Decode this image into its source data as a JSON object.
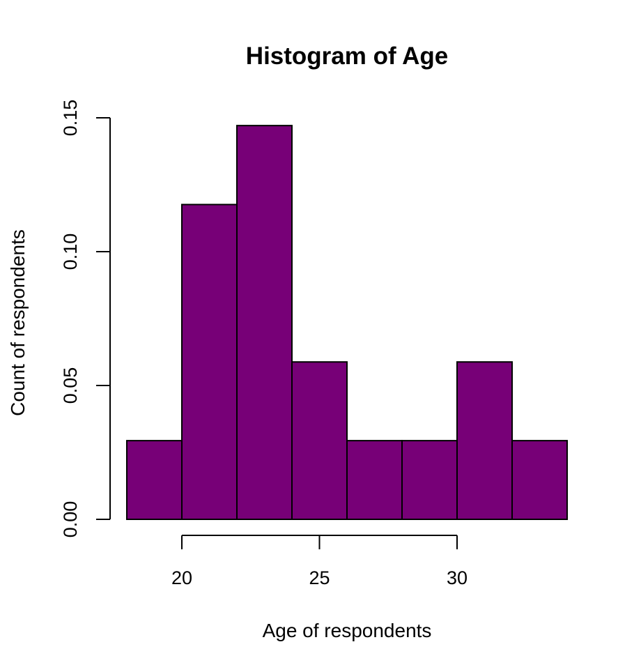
{
  "chart_data": {
    "type": "bar",
    "title": "Histogram of Age",
    "xlabel": "Age of respondents",
    "ylabel": "Count of respondents",
    "bins": [
      {
        "from": 18,
        "to": 20,
        "value": 0.0294
      },
      {
        "from": 20,
        "to": 22,
        "value": 0.1176
      },
      {
        "from": 22,
        "to": 24,
        "value": 0.1471
      },
      {
        "from": 24,
        "to": 26,
        "value": 0.0588
      },
      {
        "from": 26,
        "to": 28,
        "value": 0.0294
      },
      {
        "from": 28,
        "to": 30,
        "value": 0.0294
      },
      {
        "from": 30,
        "to": 32,
        "value": 0.0588
      },
      {
        "from": 32,
        "to": 34,
        "value": 0.0294
      }
    ],
    "x_ticks": [
      20,
      25,
      30
    ],
    "x_tick_labels": [
      "20",
      "25",
      "30"
    ],
    "y_ticks": [
      0,
      0.05,
      0.1,
      0.15
    ],
    "y_tick_labels": [
      "0.00",
      "0.05",
      "0.10",
      "0.15"
    ],
    "xlim": [
      18,
      34
    ],
    "ylim": [
      0,
      0.15
    ],
    "bar_color": "#770077",
    "grid": false,
    "legend": "none"
  }
}
